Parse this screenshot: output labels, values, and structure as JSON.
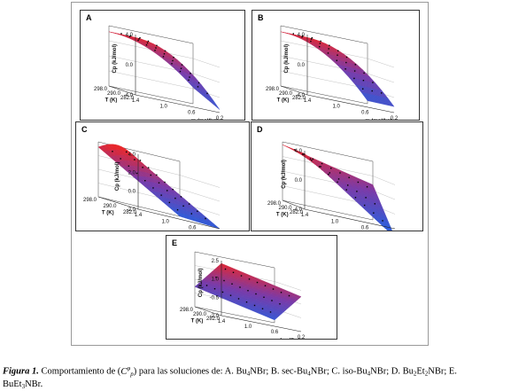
{
  "figure": {
    "panels": [
      {
        "id": "A",
        "label": "A",
        "ylabel": "Cp (kJ/mol)",
        "zticks": [
          "4.0",
          "0.0",
          "-4.0"
        ],
        "tticks": [
          "298.0",
          "290.0",
          "282.0"
        ],
        "mticks": [
          "1.4",
          "1.0",
          "0.6",
          "0.2"
        ],
        "xlabel": "m (mol/kg)",
        "tlabel": "T (K)"
      },
      {
        "id": "B",
        "label": "B",
        "ylabel": "Cp (kJ/mol)",
        "zticks": [
          "4.0",
          "0.0",
          "-4.0"
        ],
        "tticks": [
          "298.0",
          "290.0",
          "282.0"
        ],
        "mticks": [
          "1.4",
          "1.0",
          "0.6",
          "0.2"
        ],
        "xlabel": "m (mol/kg)",
        "tlabel": "T (K)"
      },
      {
        "id": "C",
        "label": "C",
        "ylabel": "Cp (kJ/mol)",
        "zticks": [
          "4.0",
          "2.0",
          "0.0",
          "-2.0"
        ],
        "tticks": [
          "298.0",
          "290.0",
          "282.0"
        ],
        "mticks": [
          "1.4",
          "1.0",
          "0.6",
          "0.2"
        ],
        "xlabel": "m (mol/kg)",
        "tlabel": "T (K)"
      },
      {
        "id": "D",
        "label": "D",
        "ylabel": "Cp (kJ/mol)",
        "zticks": [
          "4.0",
          "0.0",
          "-4.0"
        ],
        "tticks": [
          "298.0",
          "290.0",
          "282.0"
        ],
        "mticks": [
          "1.4",
          "1.0",
          "0.6",
          "0.2"
        ],
        "xlabel": "m (mol/kg)",
        "tlabel": "T (K)"
      },
      {
        "id": "E",
        "label": "E",
        "ylabel": "Cp (kJ/mol)",
        "zticks": [
          "2.5",
          "1.0",
          "-0.5",
          "-2.0"
        ],
        "tticks": [
          "298.0",
          "290.0",
          "282.0"
        ],
        "mticks": [
          "1.4",
          "1.0",
          "0.6",
          "0.2"
        ],
        "xlabel": "m (mol/kg)",
        "tlabel": "T (K)"
      }
    ]
  },
  "caption": {
    "lead": "Figura 1.",
    "intro": "Comportamiento de (",
    "symbol_base": "C",
    "symbol_sup": "φ",
    "symbol_sub": "p",
    "close": ")",
    "middle": " para las soluciones de: A. Bu",
    "a_sub": "4",
    "a_tail": "NBr; B. sec-Bu",
    "b_sub": "4",
    "b_tail": "NBr; C. iso-Bu",
    "c_sub": "4",
    "c_tail": "NBr; D. Bu",
    "d_sub1": "2",
    "d_mid": "Et",
    "d_sub2": "2",
    "d_tail": "NBr; E.",
    "e_head": "BuEt",
    "e_sub": "3",
    "e_tail": "NBr."
  },
  "colors": {
    "high": "#e8262a",
    "mid": "#7a3aa8",
    "low": "#2f5bd8"
  }
}
